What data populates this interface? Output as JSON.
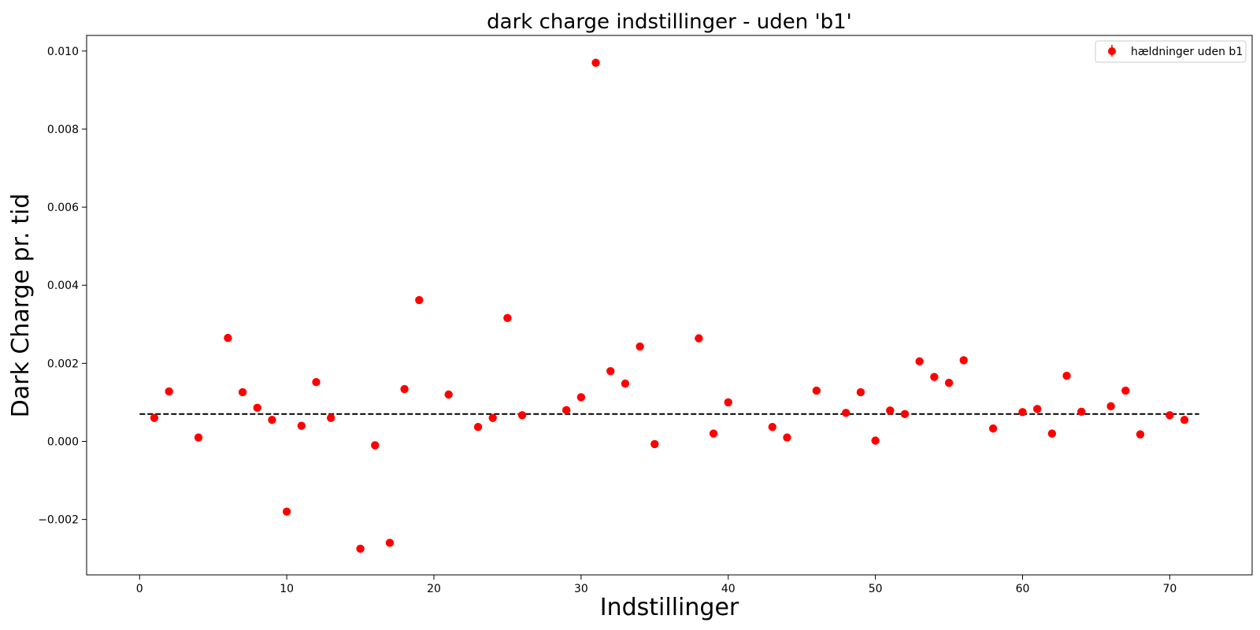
{
  "chart_data": {
    "type": "scatter",
    "title": "dark charge indstillinger - uden 'b1'",
    "xlabel": "Indstillinger",
    "ylabel": "Dark Charge pr. tid",
    "xlim": [
      -3.6,
      75.6
    ],
    "ylim": [
      -0.00342,
      0.0104
    ],
    "xticks": [
      0,
      10,
      20,
      30,
      40,
      50,
      60,
      70
    ],
    "yticks": [
      -0.002,
      0.0,
      0.002,
      0.004,
      0.006,
      0.008,
      0.01
    ],
    "ytick_labels": [
      "−0.002",
      "0.000",
      "0.002",
      "0.004",
      "0.006",
      "0.008",
      "0.010"
    ],
    "grid": false,
    "legend_position": "top-right",
    "series": [
      {
        "name": "hældninger uden b1",
        "color": "#ff0000",
        "marker": "circle",
        "x": [
          1,
          2,
          4,
          6,
          7,
          8,
          9,
          10,
          11,
          12,
          13,
          15,
          16,
          17,
          18,
          19,
          21,
          23,
          24,
          25,
          26,
          29,
          30,
          31,
          32,
          33,
          34,
          35,
          38,
          39,
          40,
          43,
          44,
          46,
          48,
          49,
          50,
          51,
          52,
          53,
          54,
          55,
          56,
          58,
          60,
          61,
          62,
          63,
          64,
          66,
          67,
          68,
          70,
          71
        ],
        "y": [
          0.0006,
          0.00128,
          0.0001,
          0.00265,
          0.00126,
          0.00086,
          0.00055,
          -0.0018,
          0.0004,
          0.00152,
          0.0006,
          -0.00275,
          -0.0001,
          -0.0026,
          0.00134,
          0.00362,
          0.0012,
          0.00037,
          0.0006,
          0.00316,
          0.00067,
          0.0008,
          0.00113,
          0.0097,
          0.0018,
          0.00148,
          0.00243,
          -7e-05,
          0.00264,
          0.0002,
          0.001,
          0.00037,
          0.0001,
          0.0013,
          0.00073,
          0.00126,
          2e-05,
          0.00079,
          0.0007,
          0.00205,
          0.00165,
          0.0015,
          0.00208,
          0.00033,
          0.00075,
          0.00083,
          0.0002,
          0.00168,
          0.00076,
          0.0009,
          0.0013,
          0.00018,
          0.00067,
          0.00055
        ]
      }
    ],
    "reference_line": {
      "y": 0.0007,
      "x": [
        0,
        72
      ],
      "style": "dashed",
      "color": "#000000"
    }
  }
}
